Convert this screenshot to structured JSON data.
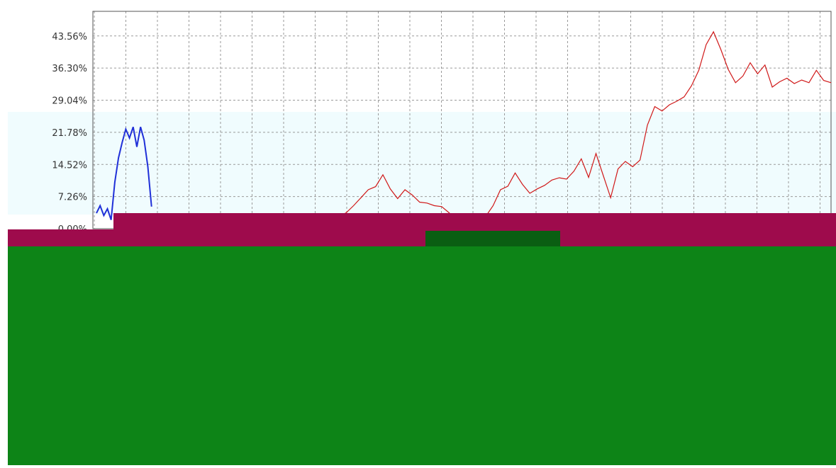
{
  "chart_data": {
    "type": "line",
    "title": "",
    "xlabel": "",
    "ylabel": "",
    "y_ticks": [
      "43.56%",
      "36.30%",
      "29.04%",
      "21.78%",
      "14.52%",
      "7.26%",
      "0.00%"
    ],
    "y_tick_values": [
      43.56,
      36.3,
      29.04,
      21.78,
      14.52,
      7.26,
      0.0
    ],
    "ylim": [
      0,
      46
    ],
    "x_index_range": [
      0,
      100
    ],
    "grid": true,
    "legend": "none",
    "series": [
      {
        "color": "#2030d8",
        "x": [
          0,
          0.5,
          1,
          1.5,
          2,
          2.5,
          3,
          3.5,
          4,
          4.5,
          5,
          5.5,
          6,
          6.5,
          7,
          7.5
        ],
        "values": [
          3.5,
          5.2,
          3.0,
          4.5,
          2.0,
          10.5,
          16.0,
          19.5,
          22.5,
          20.5,
          23.0,
          18.5,
          23.0,
          20.0,
          14.0,
          5.0
        ]
      },
      {
        "color": "#d01818",
        "x": [
          33,
          34,
          35,
          36,
          37,
          38,
          39,
          40,
          41,
          42,
          43,
          44,
          45,
          46,
          47,
          48,
          49,
          50,
          51,
          52,
          53,
          54,
          55,
          56,
          57,
          58,
          59,
          60,
          61,
          62,
          63,
          64,
          65,
          66,
          67,
          68,
          69,
          70,
          71,
          72,
          73,
          74,
          75,
          76,
          77,
          78,
          79,
          80,
          81,
          82,
          83,
          84,
          85,
          86,
          87,
          88,
          89,
          90,
          91,
          92,
          93,
          94,
          95,
          96,
          97,
          98,
          99,
          100
        ],
        "values": [
          2.8,
          3.6,
          5.2,
          7.0,
          8.8,
          9.5,
          12.2,
          9.0,
          6.8,
          8.8,
          7.6,
          6.0,
          5.8,
          5.2,
          5.0,
          3.6,
          2.0,
          0.5,
          0.8,
          1.8,
          2.8,
          5.2,
          8.8,
          9.6,
          12.6,
          10.0,
          8.0,
          9.0,
          9.8,
          11.0,
          11.5,
          11.2,
          13.0,
          15.8,
          11.6,
          17.0,
          12.0,
          7.0,
          13.5,
          15.2,
          14.0,
          15.5,
          23.4,
          27.6,
          26.6,
          28.0,
          28.8,
          29.8,
          32.3,
          35.8,
          41.6,
          44.5,
          40.5,
          36.0,
          33.0,
          34.5,
          37.5,
          35.0,
          37.0,
          32.0,
          33.2,
          34.0,
          32.8,
          33.6,
          33.0,
          35.8,
          33.5,
          33.0
        ]
      }
    ]
  },
  "overlay": {
    "label_strip_color": "#f0fcfe",
    "crimson_color": "#9e0b4c",
    "green_color": "#0d8417",
    "dark_green_color": "#0a5e12"
  }
}
